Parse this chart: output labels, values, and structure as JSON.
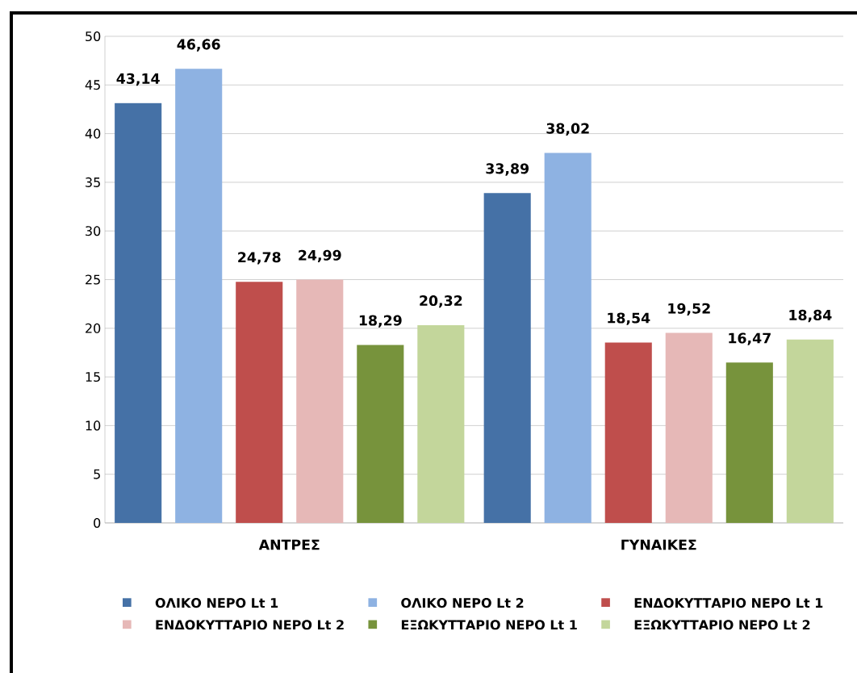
{
  "chart_data": {
    "type": "bar",
    "categories": [
      "ΑΝΤΡΕΣ",
      "ΓΥΝΑΙΚΕΣ"
    ],
    "series": [
      {
        "name": "ΟΛΙΚΟ ΝΕΡΟ Lt 1",
        "color": "#4571a6",
        "values": [
          43.14,
          33.89
        ],
        "value_labels": [
          "43,14",
          "33,89"
        ]
      },
      {
        "name": "ΟΛΙΚΟ ΝΕΡΟ Lt 2",
        "color": "#8eb2e2",
        "values": [
          46.66,
          38.02
        ],
        "value_labels": [
          "46,66",
          "38,02"
        ]
      },
      {
        "name": "ΕΝΔΟΚΥΤΤΑΡΙΟ ΝΕΡΟ Lt 1",
        "color": "#bf4e4c",
        "values": [
          24.78,
          18.54
        ],
        "value_labels": [
          "24,78",
          "18,54"
        ]
      },
      {
        "name": "ΕΝΔΟΚΥΤΤΑΡΙΟ ΝΕΡΟ Lt 2",
        "color": "#e6b8b7",
        "values": [
          24.99,
          19.52
        ],
        "value_labels": [
          "24,99",
          "19,52"
        ]
      },
      {
        "name": "ΕΞΩΚΥΤΤΑΡΙΟ ΝΕΡΟ Lt 1",
        "color": "#77933c",
        "values": [
          18.29,
          16.47
        ],
        "value_labels": [
          "18,29",
          "16,47"
        ]
      },
      {
        "name": "ΕΞΩΚΥΤΤΑΡΙΟ ΝΕΡΟ Lt 2",
        "color": "#c3d69b",
        "values": [
          20.32,
          18.84
        ],
        "value_labels": [
          "20,32",
          "18,84"
        ]
      }
    ],
    "ylim": [
      0,
      50
    ],
    "yticks": [
      0,
      5,
      10,
      15,
      20,
      25,
      30,
      35,
      40,
      45,
      50
    ],
    "grid": "y",
    "legend": "bottom"
  }
}
